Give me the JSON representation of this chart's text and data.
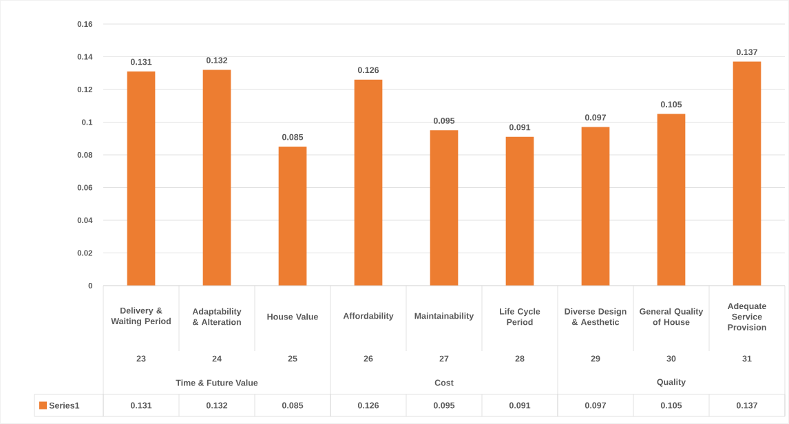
{
  "chart_data": {
    "type": "bar",
    "categories": [
      "Delivery & Waiting Period",
      "Adaptability & Alteration",
      "House Value",
      "Affordability",
      "Maintainability",
      "Life Cycle Period",
      "Diverse Design & Aesthetic",
      "General Quality of House",
      "Adequate Service Provision"
    ],
    "series": [
      {
        "name": "Series1",
        "color": "#ed7d31",
        "values": [
          0.131,
          0.132,
          0.085,
          0.126,
          0.095,
          0.091,
          0.097,
          0.105,
          0.137
        ],
        "value_labels": [
          "0.131",
          "0.132",
          "0.085",
          "0.126",
          "0.095",
          "0.091",
          "0.097",
          "0.105",
          "0.137"
        ]
      }
    ],
    "ylim": [
      0,
      0.16
    ],
    "yticks": [
      0,
      0.02,
      0.04,
      0.06,
      0.08,
      0.1,
      0.12,
      0.14,
      0.16
    ],
    "grid": "y",
    "legend": "bottom",
    "annotations": [
      "23",
      "24",
      "25",
      "26",
      "27",
      "28",
      "29",
      "30",
      "31",
      "Time & Future Value",
      "Cost",
      "Quality",
      "0.131",
      "0.132",
      "0.085",
      "0.126",
      "0.095",
      "0.091",
      "0.097",
      "0.105",
      "0.137"
    ]
  }
}
